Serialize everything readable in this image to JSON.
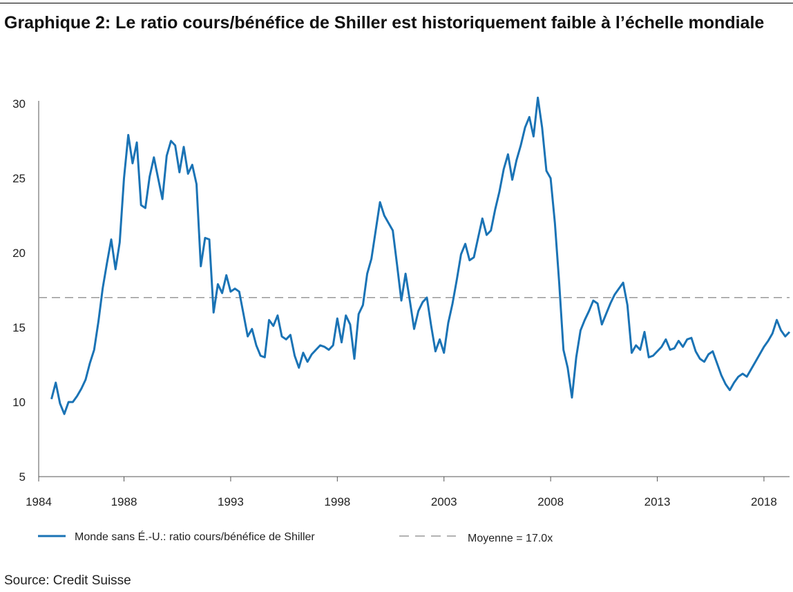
{
  "title": "Graphique 2: Le ratio cours/bénéfice de Shiller est historiquement faible à l’échelle mondiale",
  "source": "Source: Credit Suisse",
  "colors": {
    "series": "#1a73b5",
    "mean": "#999999",
    "axis": "#555555"
  },
  "chart_data": {
    "type": "line",
    "ylim": [
      5,
      30
    ],
    "yticks": [
      5,
      10,
      15,
      20,
      25,
      30
    ],
    "xlim": [
      1984,
      2019.2
    ],
    "xticks": [
      1984,
      1988,
      1993,
      1998,
      2003,
      2008,
      2013,
      2018
    ],
    "grid": false,
    "legend_position": "bottom",
    "series": [
      {
        "name": "Monde sans É.-U.: ratio cours/bénéfice de Shiller",
        "x": [
          1984.6,
          1984.8,
          1985.0,
          1985.2,
          1985.4,
          1985.6,
          1985.8,
          1986.0,
          1986.2,
          1986.4,
          1986.6,
          1986.8,
          1987.0,
          1987.2,
          1987.4,
          1987.6,
          1987.8,
          1988.0,
          1988.2,
          1988.4,
          1988.6,
          1988.8,
          1989.0,
          1989.2,
          1989.4,
          1989.6,
          1989.8,
          1990.0,
          1990.2,
          1990.4,
          1990.6,
          1990.8,
          1991.0,
          1991.2,
          1991.4,
          1991.6,
          1991.8,
          1992.0,
          1992.2,
          1992.4,
          1992.6,
          1992.8,
          1993.0,
          1993.2,
          1993.4,
          1993.6,
          1993.8,
          1994.0,
          1994.2,
          1994.4,
          1994.6,
          1994.8,
          1995.0,
          1995.2,
          1995.4,
          1995.6,
          1995.8,
          1996.0,
          1996.2,
          1996.4,
          1996.6,
          1996.8,
          1997.0,
          1997.2,
          1997.4,
          1997.6,
          1997.8,
          1998.0,
          1998.2,
          1998.4,
          1998.6,
          1998.8,
          1999.0,
          1999.2,
          1999.4,
          1999.6,
          1999.8,
          2000.0,
          2000.2,
          2000.4,
          2000.6,
          2000.8,
          2001.0,
          2001.2,
          2001.4,
          2001.6,
          2001.8,
          2002.0,
          2002.2,
          2002.4,
          2002.6,
          2002.8,
          2003.0,
          2003.2,
          2003.4,
          2003.6,
          2003.8,
          2004.0,
          2004.2,
          2004.4,
          2004.6,
          2004.8,
          2005.0,
          2005.2,
          2005.4,
          2005.6,
          2005.8,
          2006.0,
          2006.2,
          2006.4,
          2006.6,
          2006.8,
          2007.0,
          2007.2,
          2007.4,
          2007.6,
          2007.8,
          2008.0,
          2008.2,
          2008.4,
          2008.6,
          2008.8,
          2009.0,
          2009.2,
          2009.4,
          2009.6,
          2009.8,
          2010.0,
          2010.2,
          2010.4,
          2010.6,
          2010.8,
          2011.0,
          2011.2,
          2011.4,
          2011.6,
          2011.8,
          2012.0,
          2012.2,
          2012.4,
          2012.6,
          2012.8,
          2013.0,
          2013.2,
          2013.4,
          2013.6,
          2013.8,
          2014.0,
          2014.2,
          2014.4,
          2014.6,
          2014.8,
          2015.0,
          2015.2,
          2015.4,
          2015.6,
          2015.8,
          2016.0,
          2016.2,
          2016.4,
          2016.6,
          2016.8,
          2017.0,
          2017.2,
          2017.4,
          2017.6,
          2017.8,
          2018.0,
          2018.2,
          2018.4,
          2018.6,
          2018.8,
          2019.0,
          2019.2
        ],
        "values": [
          10.2,
          11.3,
          9.9,
          9.2,
          10.0,
          10.0,
          10.4,
          10.9,
          11.5,
          12.6,
          13.5,
          15.4,
          17.6,
          19.3,
          20.9,
          18.9,
          20.7,
          25.0,
          27.9,
          26.0,
          27.4,
          23.2,
          23.0,
          25.1,
          26.4,
          25.0,
          23.6,
          26.5,
          27.5,
          27.2,
          25.4,
          27.1,
          25.3,
          25.9,
          24.6,
          19.1,
          21.0,
          20.9,
          16.0,
          17.9,
          17.3,
          18.5,
          17.4,
          17.6,
          17.4,
          15.9,
          14.4,
          14.9,
          13.8,
          13.1,
          13.0,
          15.5,
          15.1,
          15.8,
          14.4,
          14.2,
          14.5,
          13.1,
          12.3,
          13.3,
          12.7,
          13.2,
          13.5,
          13.8,
          13.7,
          13.5,
          13.8,
          15.6,
          14.0,
          15.8,
          15.2,
          12.9,
          15.9,
          16.5,
          18.6,
          19.6,
          21.5,
          23.4,
          22.5,
          22.0,
          21.5,
          19.2,
          16.8,
          18.6,
          16.8,
          14.9,
          16.1,
          16.7,
          17.0,
          15.1,
          13.4,
          14.2,
          13.3,
          15.3,
          16.6,
          18.2,
          19.9,
          20.6,
          19.5,
          19.7,
          21.0,
          22.3,
          21.2,
          21.5,
          22.9,
          24.1,
          25.6,
          26.6,
          24.9,
          26.2,
          27.2,
          28.4,
          29.1,
          27.8,
          30.4,
          28.4,
          25.5,
          25.0,
          22.0,
          18.0,
          13.5,
          12.3,
          10.3,
          13.0,
          14.8,
          15.5,
          16.1,
          16.8,
          16.6,
          15.2,
          15.9,
          16.6,
          17.2,
          17.6,
          18.0,
          16.5,
          13.3,
          13.8,
          13.5,
          14.7,
          13.0,
          13.1,
          13.4,
          13.7,
          14.2,
          13.5,
          13.6,
          14.1,
          13.7,
          14.2,
          14.3,
          13.4,
          12.9,
          12.7,
          13.2,
          13.4,
          12.6,
          11.8,
          11.2,
          10.8,
          11.3,
          11.7,
          11.9,
          11.7,
          12.2,
          12.7,
          13.2,
          13.7,
          14.1,
          14.6,
          15.5,
          14.8,
          14.4,
          14.7
        ]
      },
      {
        "name": "Moyenne = 17.0x",
        "mean_value": 17.0
      }
    ]
  }
}
